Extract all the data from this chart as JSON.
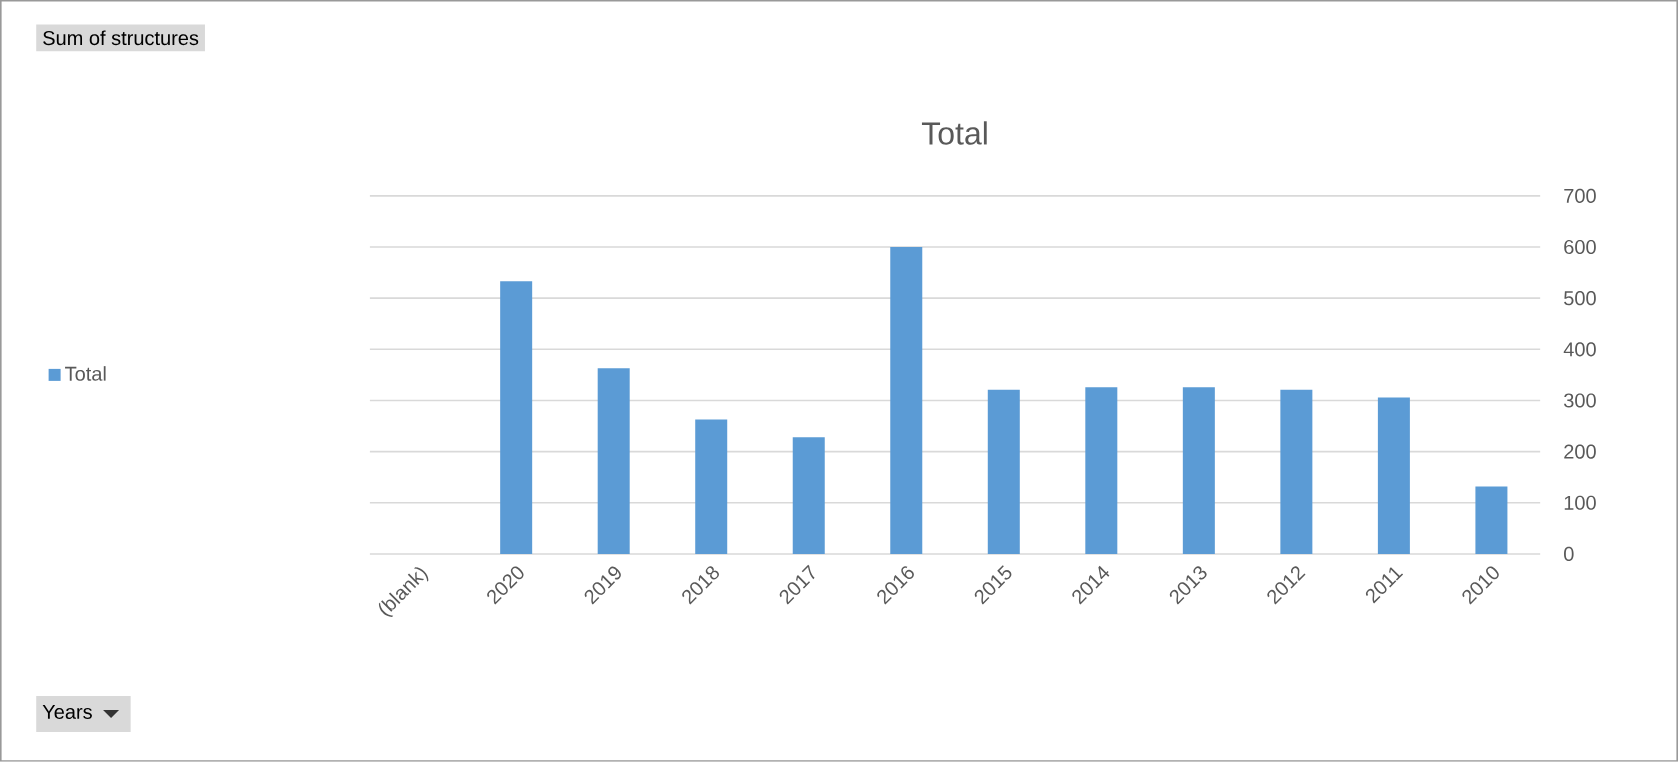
{
  "chart_data": {
    "type": "bar",
    "title": "Total",
    "categories": [
      "(blank)",
      "2020",
      "2019",
      "2018",
      "2017",
      "2016",
      "2015",
      "2014",
      "2013",
      "2012",
      "2011",
      "2010"
    ],
    "series": [
      {
        "name": "Total",
        "color": "#5b9bd5",
        "values": [
          null,
          533,
          363,
          263,
          228,
          600,
          321,
          326,
          326,
          321,
          306,
          132
        ]
      }
    ],
    "ylim": [
      0,
      700
    ],
    "yticks": [
      0,
      100,
      200,
      300,
      400,
      500,
      600,
      700
    ],
    "grid": "y",
    "legend": "left",
    "annotations": [
      "Sum of structures",
      "Years"
    ]
  }
}
